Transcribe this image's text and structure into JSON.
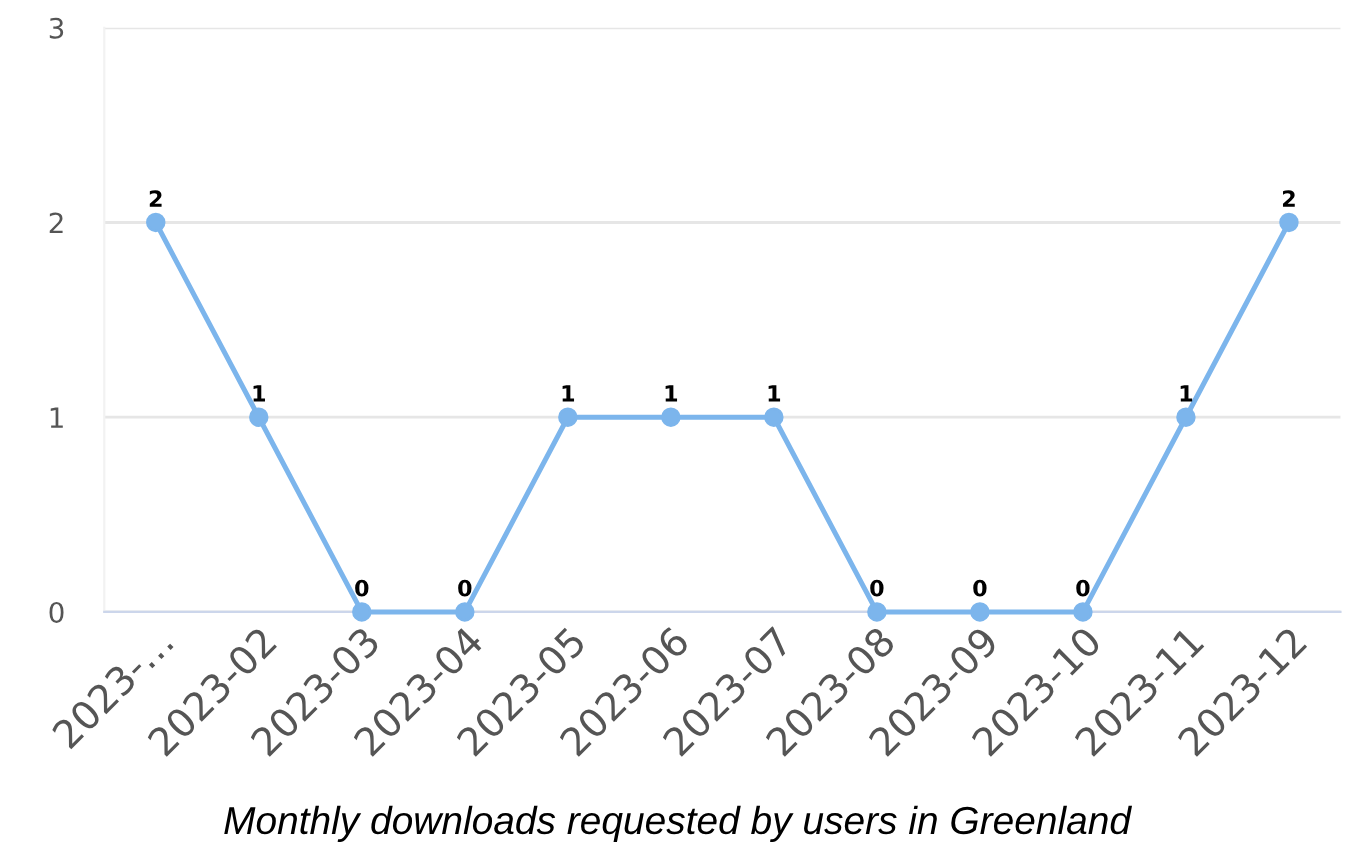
{
  "chart_data": {
    "type": "line",
    "xlabel": "Monthly downloads requested by users in Greenland",
    "categories": [
      "2023-…",
      "2023-02",
      "2023-03",
      "2023-04",
      "2023-05",
      "2023-06",
      "2023-07",
      "2023-08",
      "2023-09",
      "2023-10",
      "2023-11",
      "2023-12"
    ],
    "series": [
      {
        "color": "#7cb5ec",
        "values": [
          2,
          1,
          0,
          0,
          1,
          1,
          1,
          0,
          0,
          0,
          1,
          2
        ]
      }
    ],
    "ylim": [
      0,
      3
    ],
    "yticks": [
      0,
      1,
      2,
      3
    ],
    "grid": "y",
    "marker": "circle",
    "line_style": "solid",
    "data_labels": true
  }
}
